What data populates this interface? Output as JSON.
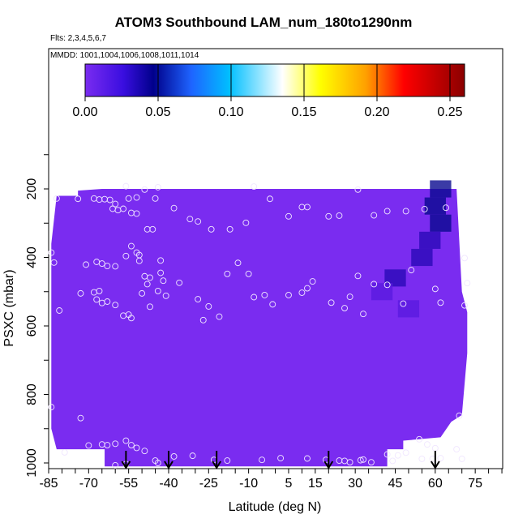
{
  "title": "ATOM3 Southbound LAM_num_180to1290nm",
  "flights_note": "Flts: 2,3,4,5,6,7",
  "mmdd_note": "MMDD: 1001,1004,1006,1008,1011,1014",
  "colors": {
    "base_field": "#7a2cf0",
    "field_dark": "#5a1ae0",
    "field_darker": "#2a0ab8",
    "field_darkest": "#0a0a90",
    "circle_stroke": "#f0e6ff",
    "arrow": "#000000"
  },
  "chart_data": {
    "type": "heatmap",
    "title": "ATOM3 Southbound LAM_num_180to1290nm",
    "xlabel": "Latitude (deg N)",
    "ylabel": "PSXC (mbar)",
    "xlim": [
      -85,
      90
    ],
    "ylim": [
      1000,
      60
    ],
    "y_inverted": true,
    "x_ticks": [
      -85,
      -70,
      -55,
      -40,
      -25,
      -10,
      5,
      15,
      30,
      45,
      60,
      75
    ],
    "y_ticks": [
      200,
      400,
      600,
      800,
      1000
    ],
    "colorbar": {
      "range": [
        0,
        0.26
      ],
      "ticks": [
        0.0,
        0.05,
        0.1,
        0.15,
        0.2,
        0.25
      ],
      "tick_labels": [
        "0.00",
        "0.05",
        "0.10",
        "0.15",
        "0.20",
        "0.25"
      ],
      "stops": [
        "#7a2cf0",
        "#00008b",
        "#1e90ff",
        "#00bfff",
        "#ffffff",
        "#ffff00",
        "#ff8c00",
        "#ff0000",
        "#8b0000"
      ]
    },
    "field_values_note": "nearly uniform ~0.01 with higher values (~0.02-0.04) near 40-65N, 200-500 mbar",
    "enhanced_cells": [
      {
        "lat": 62,
        "p": 200,
        "value": 0.04
      },
      {
        "lat": 60,
        "p": 250,
        "value": 0.045
      },
      {
        "lat": 62,
        "p": 300,
        "value": 0.04
      },
      {
        "lat": 58,
        "p": 350,
        "value": 0.035
      },
      {
        "lat": 55,
        "p": 400,
        "value": 0.03
      },
      {
        "lat": 45,
        "p": 460,
        "value": 0.03
      },
      {
        "lat": 40,
        "p": 500,
        "value": 0.025
      },
      {
        "lat": 50,
        "p": 550,
        "value": 0.02
      }
    ],
    "sample_points": [
      [
        -82,
        228
      ],
      [
        -74,
        229
      ],
      [
        -68,
        228
      ],
      [
        -66,
        231
      ],
      [
        -64,
        230
      ],
      [
        -62,
        232
      ],
      [
        -56,
        192
      ],
      [
        -55,
        228
      ],
      [
        -52,
        225
      ],
      [
        -49,
        202
      ],
      [
        -45,
        228
      ],
      [
        -44,
        195
      ],
      [
        -60,
        244
      ],
      [
        -61,
        258
      ],
      [
        -59,
        262
      ],
      [
        -57,
        258
      ],
      [
        -54,
        270
      ],
      [
        -52,
        272
      ],
      [
        -48,
        318
      ],
      [
        -46,
        318
      ],
      [
        -38,
        256
      ],
      [
        -32,
        288
      ],
      [
        -29,
        295
      ],
      [
        -24,
        318
      ],
      [
        -17,
        318
      ],
      [
        -11,
        299
      ],
      [
        -8,
        193
      ],
      [
        -2,
        229
      ],
      [
        5,
        280
      ],
      [
        10,
        253
      ],
      [
        12,
        253
      ],
      [
        20,
        280
      ],
      [
        24,
        278
      ],
      [
        31,
        202
      ],
      [
        37,
        277
      ],
      [
        42,
        265
      ],
      [
        49,
        265
      ],
      [
        56,
        259
      ],
      [
        64,
        255
      ],
      [
        -84,
        386
      ],
      [
        -83,
        415
      ],
      [
        -71,
        421
      ],
      [
        -67,
        413
      ],
      [
        -65,
        418
      ],
      [
        -63,
        425
      ],
      [
        -60,
        426
      ],
      [
        -56,
        396
      ],
      [
        -54,
        367
      ],
      [
        -52,
        386
      ],
      [
        -51,
        393
      ],
      [
        -51,
        410
      ],
      [
        -49,
        455
      ],
      [
        -48,
        478
      ],
      [
        -47,
        459
      ],
      [
        -43,
        409
      ],
      [
        -43,
        445
      ],
      [
        -42,
        468
      ],
      [
        -36,
        474
      ],
      [
        -66,
        498
      ],
      [
        -68,
        502
      ],
      [
        -73,
        505
      ],
      [
        -67,
        523
      ],
      [
        -63,
        529
      ],
      [
        -65,
        533
      ],
      [
        -60,
        539
      ],
      [
        -57,
        570
      ],
      [
        -55,
        567
      ],
      [
        -54,
        577
      ],
      [
        -50,
        505
      ],
      [
        -47,
        544
      ],
      [
        -44,
        498
      ],
      [
        -41,
        512
      ],
      [
        -29,
        522
      ],
      [
        -27,
        583
      ],
      [
        -25,
        543
      ],
      [
        -21,
        573
      ],
      [
        -18,
        448
      ],
      [
        -14,
        416
      ],
      [
        -10,
        448
      ],
      [
        -8,
        516
      ],
      [
        -4,
        510
      ],
      [
        -1,
        537
      ],
      [
        5,
        510
      ],
      [
        10,
        503
      ],
      [
        12,
        490
      ],
      [
        14,
        470
      ],
      [
        21,
        532
      ],
      [
        26,
        548
      ],
      [
        28,
        515
      ],
      [
        31,
        454
      ],
      [
        33,
        565
      ],
      [
        37,
        478
      ],
      [
        42,
        480
      ],
      [
        48,
        535
      ],
      [
        51,
        437
      ],
      [
        60,
        492
      ],
      [
        62,
        532
      ],
      [
        -81,
        555
      ],
      [
        -84,
        837
      ],
      [
        -73,
        869
      ],
      [
        -79,
        969
      ],
      [
        -70,
        949
      ],
      [
        -65,
        946
      ],
      [
        -63,
        948
      ],
      [
        -60,
        944
      ],
      [
        -56,
        935
      ],
      [
        -54,
        948
      ],
      [
        -52,
        956
      ],
      [
        -49,
        965
      ],
      [
        -38,
        981
      ],
      [
        -31,
        979
      ],
      [
        -23,
        991
      ],
      [
        -18,
        993
      ],
      [
        -5,
        991
      ],
      [
        2,
        986
      ],
      [
        12,
        987
      ],
      [
        19,
        991
      ],
      [
        24,
        993
      ],
      [
        26,
        994
      ],
      [
        28,
        998
      ],
      [
        33,
        990
      ],
      [
        42,
        975
      ],
      [
        46,
        978
      ],
      [
        49,
        970
      ],
      [
        55,
        988
      ],
      [
        59,
        988
      ],
      [
        62,
        986
      ],
      [
        70,
        988
      ],
      [
        54,
        931
      ],
      [
        57,
        946
      ],
      [
        60,
        957
      ],
      [
        44,
        994
      ],
      [
        36,
        998
      ],
      [
        32,
        992
      ],
      [
        -45,
        993
      ],
      [
        -44,
        1000
      ],
      [
        -60,
        1007
      ],
      [
        -56,
        1003
      ],
      [
        69,
        862
      ],
      [
        68,
        960
      ],
      [
        71,
        402
      ],
      [
        72,
        475
      ],
      [
        71,
        540
      ]
    ],
    "flight_arrows_lat": [
      -56,
      -40,
      -22,
      20,
      60
    ]
  }
}
